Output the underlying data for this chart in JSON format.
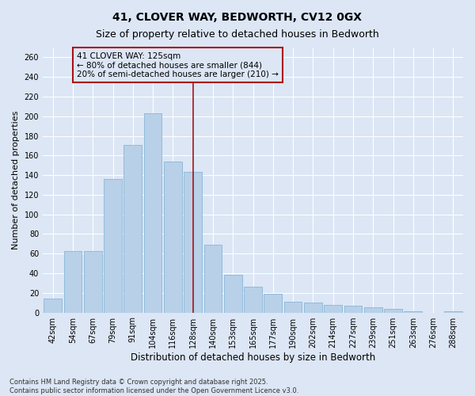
{
  "title": "41, CLOVER WAY, BEDWORTH, CV12 0GX",
  "subtitle": "Size of property relative to detached houses in Bedworth",
  "xlabel": "Distribution of detached houses by size in Bedworth",
  "ylabel": "Number of detached properties",
  "categories": [
    "42sqm",
    "54sqm",
    "67sqm",
    "79sqm",
    "91sqm",
    "104sqm",
    "116sqm",
    "128sqm",
    "140sqm",
    "153sqm",
    "165sqm",
    "177sqm",
    "190sqm",
    "202sqm",
    "214sqm",
    "227sqm",
    "239sqm",
    "251sqm",
    "263sqm",
    "276sqm",
    "288sqm"
  ],
  "values": [
    14,
    63,
    63,
    136,
    171,
    203,
    154,
    143,
    69,
    38,
    26,
    19,
    11,
    10,
    8,
    7,
    5,
    4,
    1,
    0,
    1
  ],
  "bar_color": "#b8d0e8",
  "bar_edge_color": "#7aafd4",
  "vline_x_pos": 7.0,
  "vline_color": "#aa1111",
  "annotation_line1": "41 CLOVER WAY: 125sqm",
  "annotation_line2": "← 80% of detached houses are smaller (844)",
  "annotation_line3": "20% of semi-detached houses are larger (210) →",
  "annotation_box_color": "#aa1111",
  "ylim": [
    0,
    270
  ],
  "yticks": [
    0,
    20,
    40,
    60,
    80,
    100,
    120,
    140,
    160,
    180,
    200,
    220,
    240,
    260
  ],
  "background_color": "#dce6f5",
  "grid_color": "#ffffff",
  "footer_line1": "Contains HM Land Registry data © Crown copyright and database right 2025.",
  "footer_line2": "Contains public sector information licensed under the Open Government Licence v3.0.",
  "title_fontsize": 10,
  "subtitle_fontsize": 9,
  "tick_fontsize": 7,
  "ylabel_fontsize": 8,
  "xlabel_fontsize": 8.5,
  "annotation_fontsize": 7.5,
  "footer_fontsize": 6
}
